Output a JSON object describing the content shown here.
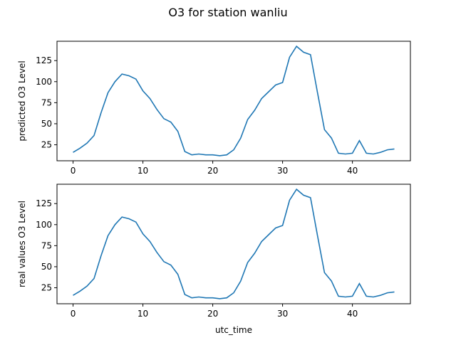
{
  "figure": {
    "title": "O3 for station wanliu"
  },
  "chart_data": [
    {
      "type": "line",
      "title": "",
      "xlabel": "",
      "ylabel": "predicted O3 Level",
      "xlim": [
        -2.3,
        48.3
      ],
      "ylim": [
        6,
        148
      ],
      "xticks": [
        0,
        10,
        20,
        30,
        40
      ],
      "yticks": [
        25,
        50,
        75,
        100,
        125
      ],
      "grid": false,
      "color": "#1f77b4",
      "series": [
        {
          "name": "",
          "x": [
            0,
            1,
            2,
            3,
            4,
            5,
            6,
            7,
            8,
            9,
            10,
            11,
            12,
            13,
            14,
            15,
            16,
            17,
            18,
            19,
            20,
            21,
            22,
            23,
            24,
            25,
            26,
            27,
            28,
            29,
            30,
            31,
            32,
            33,
            34,
            35,
            36,
            37,
            38,
            39,
            40,
            41,
            42,
            43,
            44,
            45,
            46
          ],
          "y": [
            16,
            21,
            27,
            36,
            63,
            87,
            100,
            109,
            107,
            103,
            89,
            80,
            67,
            56,
            52,
            41,
            17,
            13,
            14,
            13,
            13,
            12,
            13,
            19,
            33,
            55,
            66,
            80,
            88,
            96,
            99,
            129,
            142,
            135,
            132,
            87,
            43,
            33,
            15,
            14,
            15,
            30,
            15,
            14,
            16,
            19,
            20
          ]
        }
      ]
    },
    {
      "type": "line",
      "title": "",
      "xlabel": "utc_time",
      "ylabel": "real values O3 Level",
      "xlim": [
        -2.3,
        48.3
      ],
      "ylim": [
        6,
        148
      ],
      "xticks": [
        0,
        10,
        20,
        30,
        40
      ],
      "yticks": [
        25,
        50,
        75,
        100,
        125
      ],
      "grid": false,
      "color": "#1f77b4",
      "series": [
        {
          "name": "",
          "x": [
            0,
            1,
            2,
            3,
            4,
            5,
            6,
            7,
            8,
            9,
            10,
            11,
            12,
            13,
            14,
            15,
            16,
            17,
            18,
            19,
            20,
            21,
            22,
            23,
            24,
            25,
            26,
            27,
            28,
            29,
            30,
            31,
            32,
            33,
            34,
            35,
            36,
            37,
            38,
            39,
            40,
            41,
            42,
            43,
            44,
            45,
            46
          ],
          "y": [
            16,
            21,
            27,
            36,
            63,
            87,
            100,
            109,
            107,
            103,
            89,
            80,
            67,
            56,
            52,
            41,
            17,
            13,
            14,
            13,
            13,
            12,
            13,
            19,
            33,
            55,
            66,
            80,
            88,
            96,
            99,
            129,
            142,
            135,
            132,
            87,
            43,
            33,
            15,
            14,
            15,
            30,
            15,
            14,
            16,
            19,
            20
          ]
        }
      ]
    }
  ]
}
